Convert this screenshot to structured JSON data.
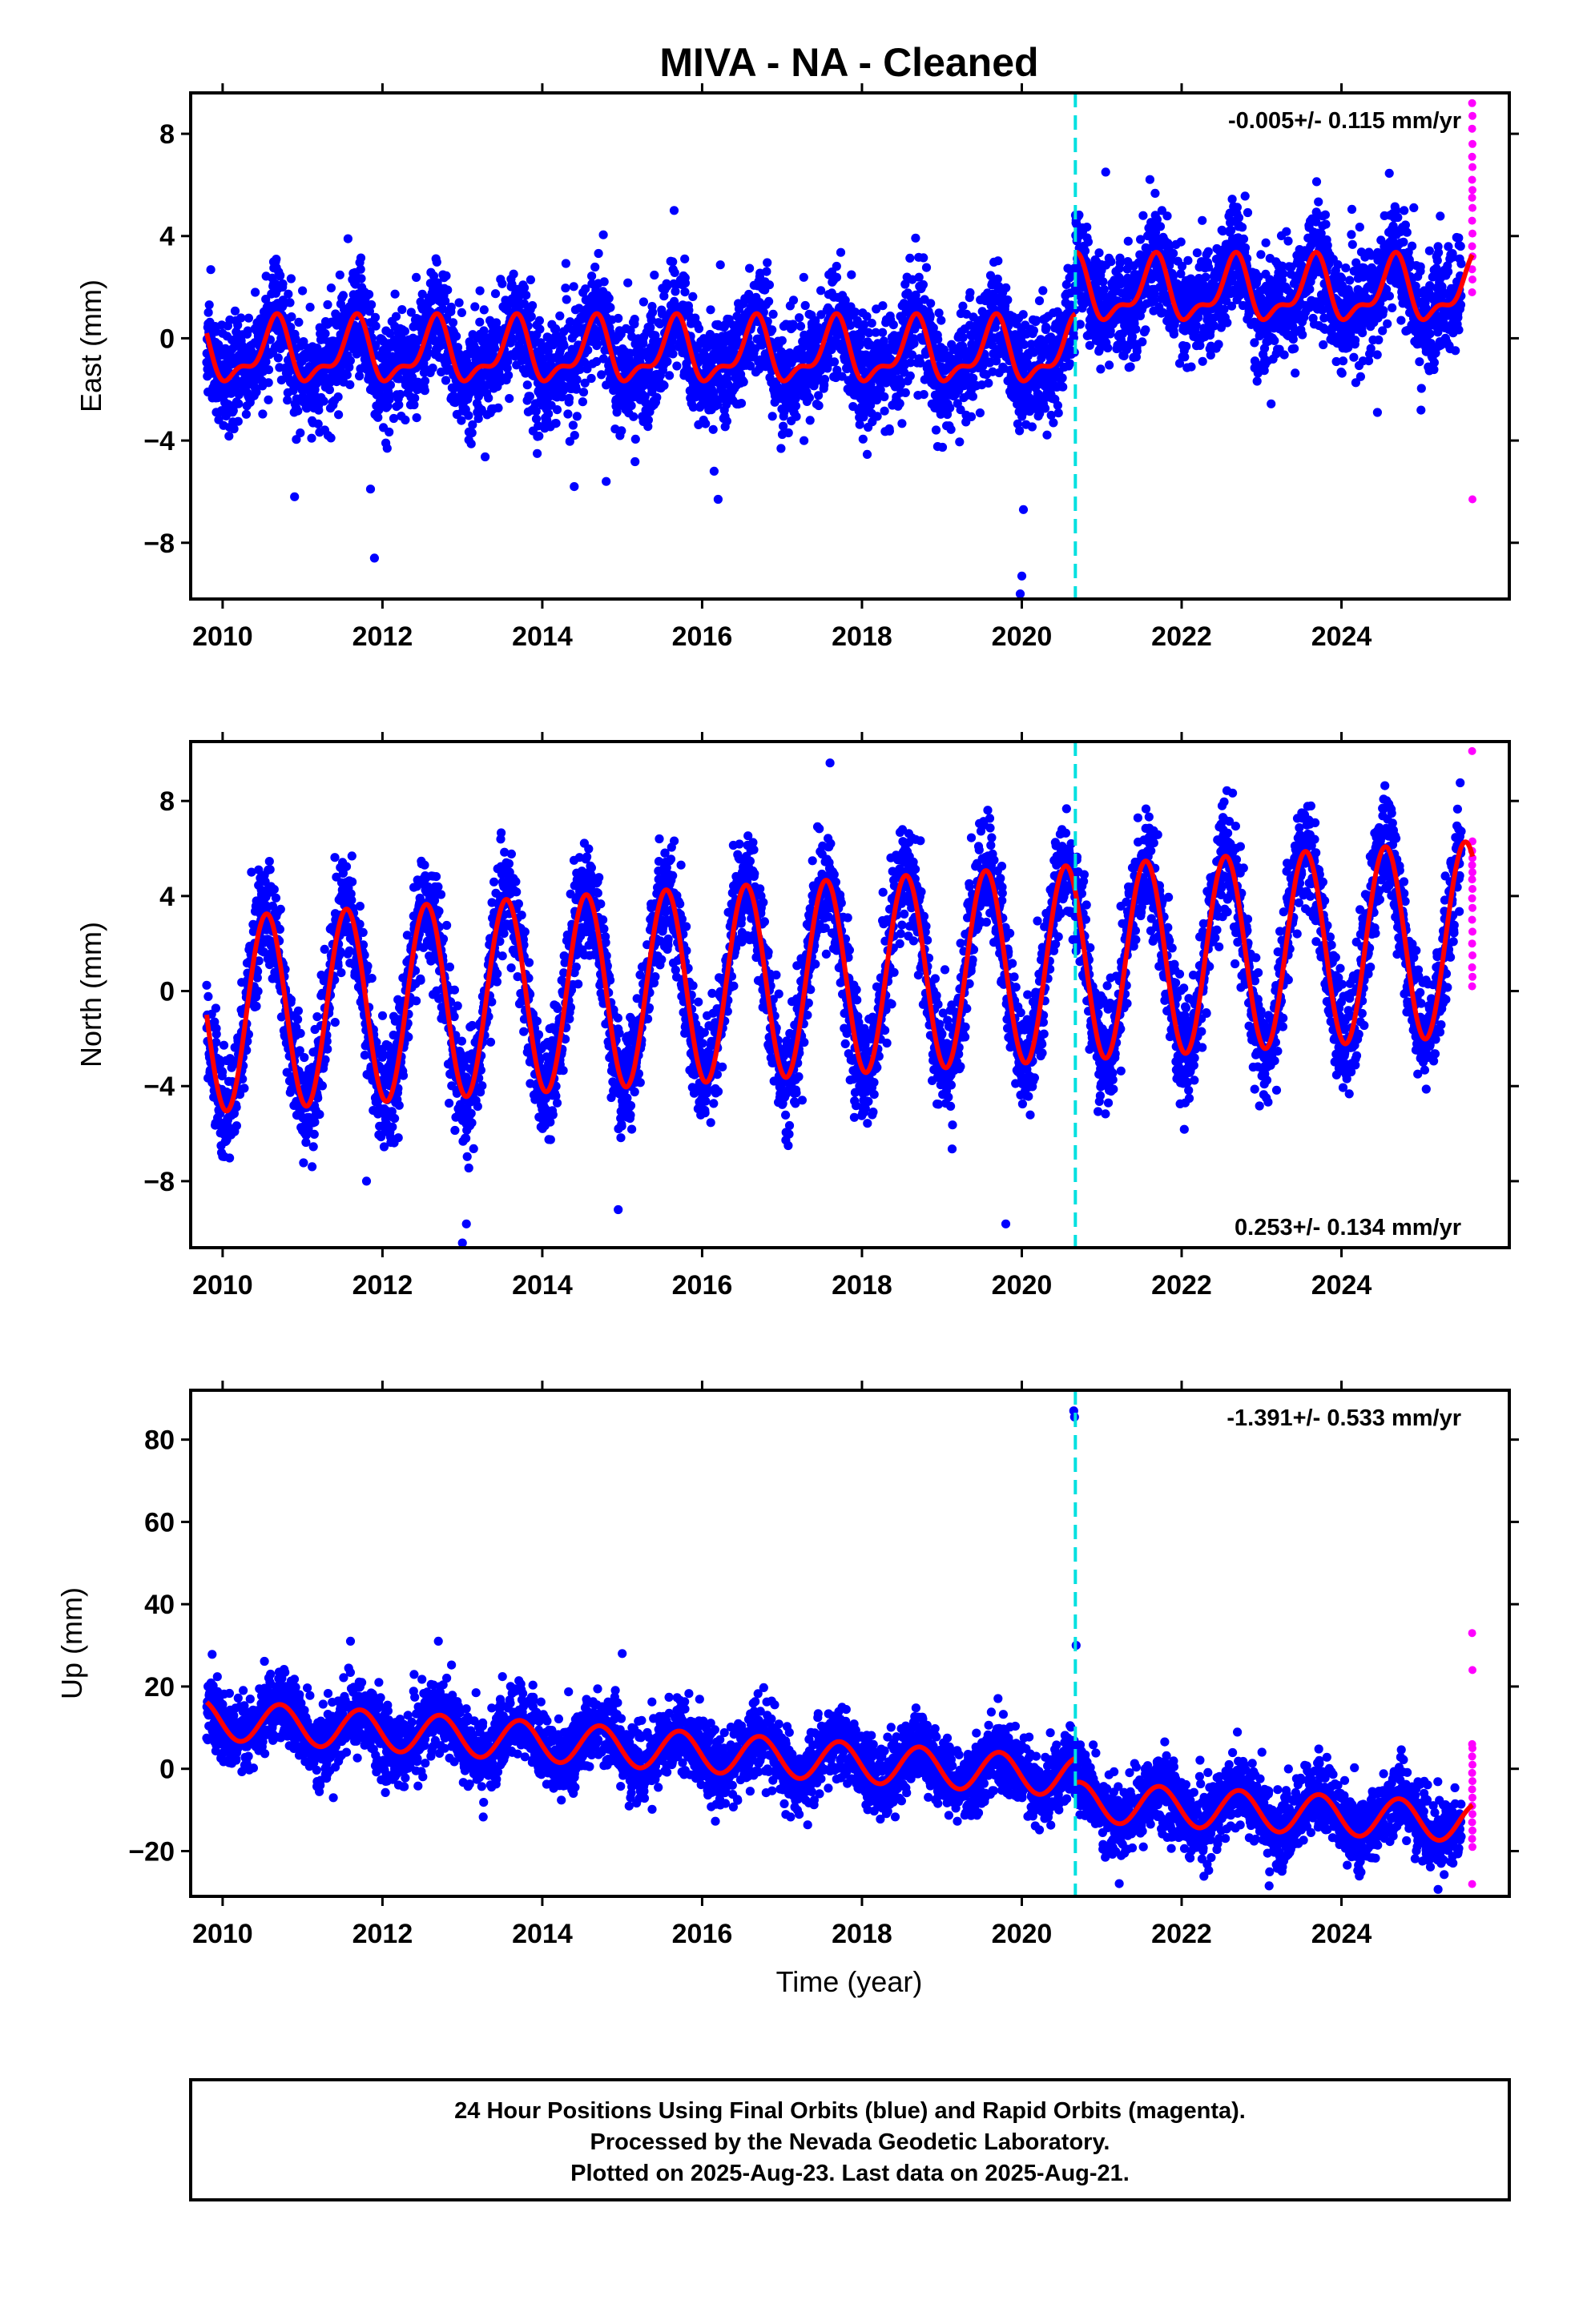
{
  "title": "MIVA  - NA - Cleaned",
  "colors": {
    "final_orbits": "#0000ff",
    "rapid_orbits": "#ff00ff",
    "model": "#ff0000",
    "equipment_change": "#00e0e0"
  },
  "chart_data": [
    {
      "type": "scatter",
      "ylabel": "East (mm)",
      "xlim": [
        2009.6,
        2026.1
      ],
      "ylim": [
        -10.2,
        9.6
      ],
      "yticks": [
        -8,
        -4,
        0,
        4,
        8
      ],
      "xticks": [
        2010,
        2012,
        2014,
        2016,
        2018,
        2020,
        2022,
        2024
      ],
      "tick_labels": [
        "−8",
        "−4",
        "0",
        "4",
        "8"
      ],
      "x_tick_labels": [
        "2010",
        "2012",
        "2014",
        "2016",
        "2018",
        "2020",
        "2022",
        "2024"
      ],
      "rate_text": "-0.005+/- 0.115 mm/yr",
      "rate_position": "top-right",
      "equipment_change_x": 2020.67,
      "data_start": 2009.8,
      "final_end": 2025.5,
      "rapid_end": 2025.64,
      "model": {
        "segments": [
          {
            "x_start": 2009.8,
            "x_end": 2020.67,
            "offset": -0.6
          },
          {
            "x_start": 2020.67,
            "x_end": 2025.64,
            "offset": 1.8
          }
        ],
        "annual_amp": 1.1,
        "annual_peak": 0.65,
        "semiannual_amp": 0.5,
        "semiannual_phase": 0.2
      },
      "scatter_sd": 1.05,
      "outliers": [
        [
          2011.9,
          -8.6
        ],
        [
          2020.0,
          -9.3
        ],
        [
          2019.98,
          -10.0
        ],
        [
          2020.02,
          -6.7
        ],
        [
          2010.9,
          -6.2
        ],
        [
          2016.2,
          -6.3
        ],
        [
          2011.85,
          -5.9
        ],
        [
          2014.4,
          -5.8
        ],
        [
          2014.8,
          -5.6
        ],
        [
          2021.05,
          6.5
        ],
        [
          2015.65,
          5.0
        ],
        [
          2016.15,
          -5.2
        ],
        [
          2024.45,
          -2.9
        ]
      ],
      "rapid_points": [
        9.2,
        8.7,
        8.2,
        7.6,
        7.1,
        6.7,
        6.2,
        5.8,
        5.5,
        5.1,
        4.6,
        4.1,
        3.6,
        3.2,
        2.7,
        2.3,
        1.8,
        -6.3
      ]
    },
    {
      "type": "scatter",
      "ylabel": "North (mm)",
      "xlim": [
        2009.6,
        2026.1
      ],
      "ylim": [
        -10.8,
        10.5
      ],
      "yticks": [
        -8,
        -4,
        0,
        4,
        8
      ],
      "xticks": [
        2010,
        2012,
        2014,
        2016,
        2018,
        2020,
        2022,
        2024
      ],
      "tick_labels": [
        "−8",
        "−4",
        "0",
        "4",
        "8"
      ],
      "x_tick_labels": [
        "2010",
        "2012",
        "2014",
        "2016",
        "2018",
        "2020",
        "2022",
        "2024"
      ],
      "rate_text": "0.253+/- 0.134 mm/yr",
      "rate_position": "bottom-right",
      "equipment_change_x": 2020.67,
      "data_start": 2009.8,
      "final_end": 2025.5,
      "rapid_end": 2025.64,
      "model": {
        "segments": [
          {
            "x_start": 2009.8,
            "x_end": 2025.64,
            "offset_start": -1.0,
            "offset_end": 2.2
          }
        ],
        "annual_amp": 4.1,
        "annual_peak": 0.55,
        "semiannual_amp": 0.0,
        "semiannual_phase": 0.0
      },
      "scatter_sd": 1.15,
      "outliers": [
        [
          2013.0,
          -10.6
        ],
        [
          2013.05,
          -9.8
        ],
        [
          2019.8,
          -9.8
        ],
        [
          2014.95,
          -9.2
        ],
        [
          2017.6,
          9.6
        ],
        [
          2010.45,
          5.1
        ],
        [
          2011.8,
          -8.0
        ]
      ],
      "rapid_points": [
        10.1,
        6.3,
        5.9,
        5.6,
        5.3,
        5.0,
        4.7,
        4.3,
        3.9,
        3.5,
        3.0,
        2.5,
        2.0,
        1.5,
        1.0,
        0.6,
        0.2
      ]
    },
    {
      "type": "scatter",
      "ylabel": "Up (mm)",
      "xlabel": "Time (year)",
      "xlim": [
        2009.6,
        2026.1
      ],
      "ylim": [
        -31,
        92
      ],
      "yticks": [
        -20,
        0,
        20,
        40,
        60,
        80
      ],
      "xticks": [
        2010,
        2012,
        2014,
        2016,
        2018,
        2020,
        2022,
        2024
      ],
      "tick_labels": [
        "−20",
        "0",
        "20",
        "40",
        "60",
        "80"
      ],
      "x_tick_labels": [
        "2010",
        "2012",
        "2014",
        "2016",
        "2018",
        "2020",
        "2022",
        "2024"
      ],
      "rate_text": "-1.391+/- 0.533 mm/yr",
      "rate_position": "top-right",
      "equipment_change_x": 2020.67,
      "data_start": 2009.8,
      "final_end": 2025.5,
      "rapid_end": 2025.64,
      "model": {
        "segments": [
          {
            "x_start": 2009.8,
            "x_end": 2020.67,
            "offset_start": 12.0,
            "offset_end": -2.0
          },
          {
            "x_start": 2020.67,
            "x_end": 2025.64,
            "offset_start": -8.0,
            "offset_end": -13.0
          }
        ],
        "annual_amp": 4.8,
        "annual_peak": 0.72,
        "semiannual_amp": 0.0,
        "semiannual_phase": 0.0
      },
      "scatter_sd": 4.3,
      "outliers": [
        [
          2020.65,
          87.0
        ],
        [
          2020.66,
          85.5
        ],
        [
          2020.68,
          30.0
        ],
        [
          2015.0,
          28.0
        ],
        [
          2012.7,
          31.0
        ],
        [
          2011.6,
          31.0
        ]
      ],
      "rapid_points": [
        33.0,
        24.0,
        6.0,
        5.0,
        3.0,
        1.0,
        -1.0,
        -3.0,
        -5.0,
        -7.0,
        -9.0,
        -11.0,
        -13.0,
        -15.0,
        -17.0,
        -19.0,
        -28.0
      ]
    }
  ],
  "footer": {
    "line1": "24 Hour Positions Using Final Orbits (blue) and Rapid Orbits (magenta).",
    "line2": "Processed by the Nevada Geodetic Laboratory.",
    "line3": "Plotted on 2025-Aug-23. Last data on 2025-Aug-21."
  }
}
